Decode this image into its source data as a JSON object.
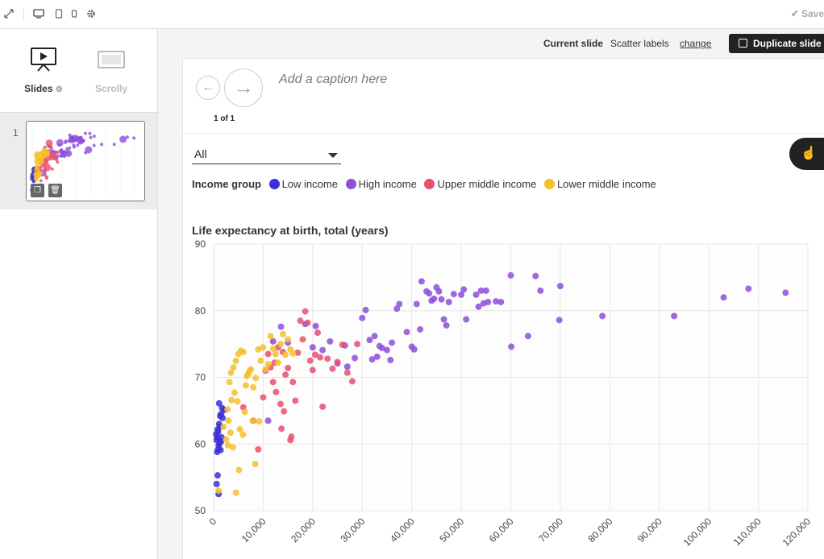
{
  "toolbar": {
    "icons": [
      "expand-icon",
      "desktop-icon",
      "tablet-icon",
      "mobile-icon",
      "gear-icon"
    ],
    "save_label": "Save"
  },
  "modes": {
    "slides_label": "Slides",
    "scrolly_label": "Scrolly"
  },
  "thumbnails": [
    {
      "number": "1"
    }
  ],
  "current_slide": {
    "label": "Current slide",
    "name": "Scatter labels",
    "change_label": "change",
    "duplicate_label": "Duplicate slide"
  },
  "navigation": {
    "counter": "1 of 1",
    "caption_placeholder": "Add a caption here"
  },
  "filter": {
    "selected": "All"
  },
  "legend": {
    "title": "Income group",
    "items": [
      {
        "label": "Low income",
        "color": "#3b2fd6"
      },
      {
        "label": "High income",
        "color": "#8d4fd9"
      },
      {
        "label": "Upper middle income",
        "color": "#e8506e"
      },
      {
        "label": "Lower middle income",
        "color": "#f5c02a"
      }
    ]
  },
  "chart_data": {
    "type": "scatter",
    "title": "Life expectancy at birth, total (years)",
    "xlim": [
      0,
      120000
    ],
    "ylim": [
      50,
      90
    ],
    "x_ticks": [
      "0",
      "10,000",
      "20,000",
      "30,000",
      "40,000",
      "50,000",
      "60,000",
      "70,000",
      "80,000",
      "90,000",
      "100,000",
      "110,000",
      "120,000"
    ],
    "y_ticks": [
      "50",
      "60",
      "70",
      "80",
      "90"
    ],
    "grid": true,
    "series": [
      {
        "name": "Low income",
        "color": "#3b2fd6",
        "points": [
          [
            600,
            54
          ],
          [
            800,
            55.3
          ],
          [
            1000,
            52.5
          ],
          [
            700,
            58.8
          ],
          [
            900,
            59.2
          ],
          [
            1200,
            60.1
          ],
          [
            500,
            61.5
          ],
          [
            800,
            62.2
          ],
          [
            1100,
            63
          ],
          [
            1300,
            64.2
          ],
          [
            1500,
            64.5
          ],
          [
            1700,
            65.4
          ],
          [
            900,
            61.8
          ],
          [
            1400,
            59.1
          ],
          [
            600,
            60.6
          ],
          [
            1300,
            62.6
          ],
          [
            1800,
            63.9
          ],
          [
            1000,
            59.8
          ],
          [
            1600,
            61
          ],
          [
            1100,
            66.1
          ],
          [
            700,
            61
          ],
          [
            2100,
            65.1
          ],
          [
            1500,
            60.4
          ]
        ]
      },
      {
        "name": "High income",
        "color": "#8d4fd9",
        "points": [
          [
            11000,
            63.5
          ],
          [
            12000,
            75.4
          ],
          [
            13600,
            77.6
          ],
          [
            15000,
            75.2
          ],
          [
            18500,
            78
          ],
          [
            20000,
            74.5
          ],
          [
            20600,
            77.7
          ],
          [
            22000,
            74.1
          ],
          [
            23500,
            75.4
          ],
          [
            25000,
            72.1
          ],
          [
            26500,
            74.8
          ],
          [
            27000,
            71.6
          ],
          [
            28500,
            72.9
          ],
          [
            30000,
            78.9
          ],
          [
            30700,
            80.1
          ],
          [
            31500,
            75.6
          ],
          [
            32000,
            72.7
          ],
          [
            32500,
            76.2
          ],
          [
            33000,
            73.1
          ],
          [
            33500,
            74.7
          ],
          [
            34000,
            74.4
          ],
          [
            35000,
            74.1
          ],
          [
            35700,
            72.6
          ],
          [
            36000,
            75.2
          ],
          [
            37000,
            80.3
          ],
          [
            37500,
            81
          ],
          [
            39000,
            76.8
          ],
          [
            40000,
            74.6
          ],
          [
            40500,
            74.2
          ],
          [
            41000,
            81
          ],
          [
            41700,
            77.2
          ],
          [
            42000,
            84.4
          ],
          [
            43000,
            82.9
          ],
          [
            43500,
            82.6
          ],
          [
            44000,
            81.5
          ],
          [
            44500,
            81.8
          ],
          [
            45000,
            83.5
          ],
          [
            45500,
            82.9
          ],
          [
            46000,
            81.7
          ],
          [
            46500,
            78.7
          ],
          [
            47000,
            77.8
          ],
          [
            47500,
            81.3
          ],
          [
            48500,
            82.5
          ],
          [
            50000,
            82.4
          ],
          [
            50500,
            83.2
          ],
          [
            51000,
            78.7
          ],
          [
            53000,
            82.4
          ],
          [
            53500,
            80.6
          ],
          [
            54000,
            83
          ],
          [
            54500,
            81.1
          ],
          [
            55000,
            83
          ],
          [
            55400,
            81.3
          ],
          [
            57000,
            81.4
          ],
          [
            58000,
            81.3
          ],
          [
            60000,
            85.3
          ],
          [
            60100,
            74.6
          ],
          [
            63500,
            76.2
          ],
          [
            65000,
            85.2
          ],
          [
            66000,
            83
          ],
          [
            70000,
            83.7
          ],
          [
            69800,
            78.6
          ],
          [
            78500,
            79.2
          ],
          [
            93000,
            79.2
          ],
          [
            103000,
            82
          ],
          [
            108000,
            83.3
          ],
          [
            115500,
            82.7
          ]
        ]
      },
      {
        "name": "Upper middle income",
        "color": "#e8506e",
        "points": [
          [
            6000,
            65.5
          ],
          [
            8000,
            63.5
          ],
          [
            9000,
            59.2
          ],
          [
            10000,
            67
          ],
          [
            10500,
            71
          ],
          [
            11000,
            73.5
          ],
          [
            11500,
            71.5
          ],
          [
            12000,
            69.3
          ],
          [
            12300,
            72.2
          ],
          [
            13000,
            74.5
          ],
          [
            13500,
            66
          ],
          [
            13700,
            62.3
          ],
          [
            14000,
            73.8
          ],
          [
            14500,
            70.4
          ],
          [
            15000,
            71.4
          ],
          [
            15500,
            60.6
          ],
          [
            15700,
            61.1
          ],
          [
            16000,
            69.3
          ],
          [
            17000,
            73.7
          ],
          [
            17500,
            78.5
          ],
          [
            18000,
            75.7
          ],
          [
            18500,
            79.9
          ],
          [
            19000,
            78.2
          ],
          [
            19500,
            72.5
          ],
          [
            20000,
            71.1
          ],
          [
            21000,
            76.7
          ],
          [
            21500,
            73
          ],
          [
            22000,
            65.6
          ],
          [
            23000,
            72.8
          ],
          [
            24000,
            71.3
          ],
          [
            25000,
            72.3
          ],
          [
            26000,
            74.9
          ],
          [
            27000,
            70.7
          ],
          [
            28000,
            69.4
          ],
          [
            29000,
            75
          ],
          [
            16500,
            66.5
          ],
          [
            12600,
            67.8
          ],
          [
            14200,
            64.9
          ],
          [
            20500,
            73.4
          ]
        ]
      },
      {
        "name": "Lower middle income",
        "color": "#f5c02a",
        "points": [
          [
            1000,
            53
          ],
          [
            2500,
            60.7
          ],
          [
            3000,
            63.5
          ],
          [
            3200,
            69.3
          ],
          [
            3500,
            70.7
          ],
          [
            4000,
            71.5
          ],
          [
            4500,
            72.5
          ],
          [
            5000,
            73.5
          ],
          [
            5500,
            74
          ],
          [
            6000,
            73.8
          ],
          [
            6500,
            68.8
          ],
          [
            7000,
            70.5
          ],
          [
            7500,
            71.2
          ],
          [
            8000,
            68.5
          ],
          [
            8500,
            69.9
          ],
          [
            9000,
            74.2
          ],
          [
            9500,
            72.5
          ],
          [
            10000,
            74.5
          ],
          [
            10500,
            71.2
          ],
          [
            11000,
            72
          ],
          [
            11500,
            76.2
          ],
          [
            12000,
            74.3
          ],
          [
            12500,
            73.5
          ],
          [
            13000,
            72.2
          ],
          [
            13500,
            75
          ],
          [
            14000,
            76.5
          ],
          [
            14500,
            73.4
          ],
          [
            15000,
            75.7
          ],
          [
            15500,
            74.2
          ],
          [
            16000,
            73.6
          ],
          [
            2000,
            62.6
          ],
          [
            2800,
            65.2
          ],
          [
            3600,
            66.6
          ],
          [
            4200,
            67.7
          ],
          [
            4800,
            66.4
          ],
          [
            5300,
            62.2
          ],
          [
            5900,
            61.4
          ],
          [
            6300,
            64.8
          ],
          [
            7200,
            70.9
          ],
          [
            7900,
            63.5
          ],
          [
            8400,
            57
          ],
          [
            9200,
            63.4
          ],
          [
            4500,
            52.7
          ],
          [
            5100,
            56.1
          ],
          [
            3900,
            59.5
          ],
          [
            2900,
            59.8
          ],
          [
            3400,
            61.7
          ],
          [
            6700,
            70.2
          ]
        ]
      }
    ]
  }
}
